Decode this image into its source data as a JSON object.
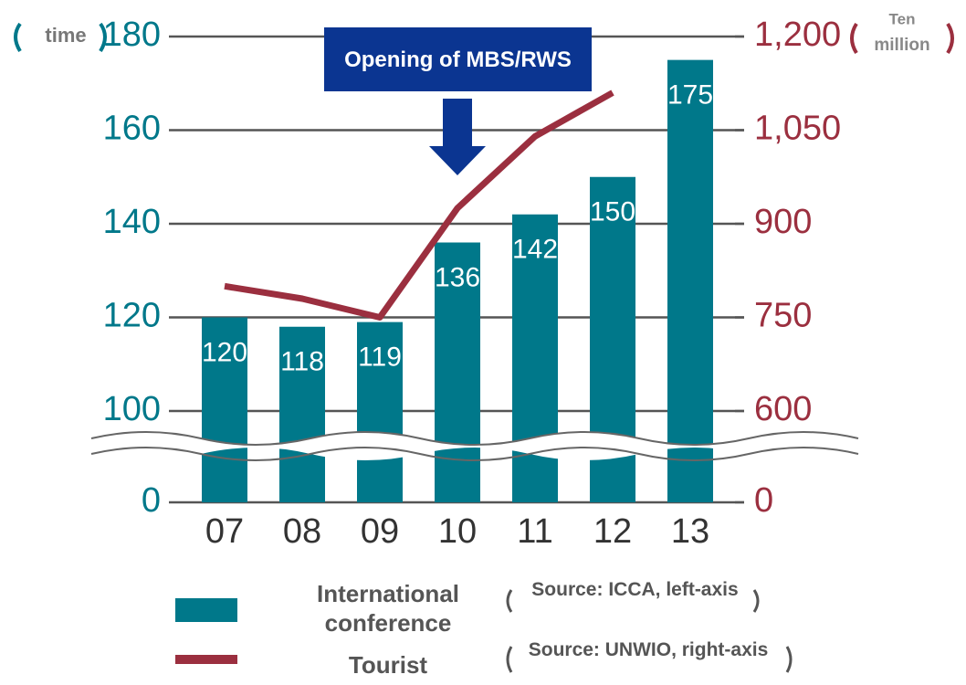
{
  "chart_data": {
    "type": "bar_line",
    "categories": [
      "07",
      "08",
      "09",
      "10",
      "11",
      "12",
      "13"
    ],
    "series": [
      {
        "name": "International conference",
        "color": "#00788a",
        "type": "bar",
        "values": [
          120,
          118,
          119,
          136,
          142,
          150,
          175
        ],
        "source": "Source: ICCA, left-axis"
      },
      {
        "name": "Tourist",
        "color": "#9b2f3f",
        "type": "line",
        "axis": "y2",
        "values": [
          800,
          780,
          750,
          925,
          1040,
          1110,
          null
        ],
        "source": "Source: UNWIO, right-axis"
      }
    ],
    "ylim": [
      0,
      180
    ],
    "yticks": [
      0,
      100,
      120,
      140,
      160,
      180
    ],
    "axis_break": [
      0,
      100
    ],
    "y2lim": [
      0,
      1200
    ],
    "y2ticks": [
      0,
      600,
      750,
      900,
      {
        "value": 1050,
        "label": "1,050"
      },
      {
        "value": 1200,
        "label": "1,200"
      }
    ],
    "y2_break": [
      0,
      600
    ],
    "ylabel": "time",
    "y2label": [
      "Ten",
      "million"
    ],
    "annotation": "Opening of MBS/RWS",
    "grid": true
  }
}
